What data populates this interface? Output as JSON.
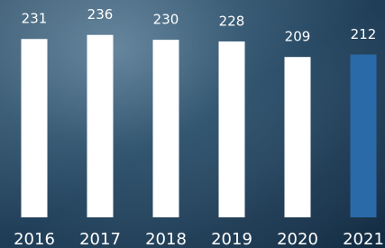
{
  "chart_data": {
    "type": "bar",
    "categories": [
      "2016",
      "2017",
      "2018",
      "2019",
      "2020",
      "2021"
    ],
    "values": [
      231,
      236,
      230,
      228,
      209,
      212
    ],
    "colors": [
      "#ffffff",
      "#ffffff",
      "#ffffff",
      "#ffffff",
      "#ffffff",
      "#2a6aa8"
    ],
    "ylim": [
      13,
      250
    ]
  }
}
